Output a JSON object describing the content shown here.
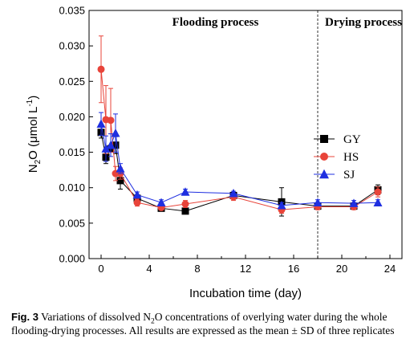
{
  "chart_data": {
    "type": "scatter",
    "xlabel": "Incubation time (day)",
    "ylabel": {
      "main": "N",
      "sub": "2",
      "rest": "O (μmol L",
      "sup": "-1",
      "end": ")"
    },
    "xlim": [
      -1,
      25
    ],
    "ylim": [
      0,
      0.035
    ],
    "xticks": [
      "0",
      "4",
      "8",
      "12",
      "16",
      "20",
      "24"
    ],
    "yticks": [
      "0.000",
      "0.005",
      "0.010",
      "0.015",
      "0.020",
      "0.025",
      "0.030",
      "0.035"
    ],
    "annotations": [
      {
        "text": "Flooding process",
        "x": 9.5
      },
      {
        "text": "Drying process",
        "x": 21.8
      }
    ],
    "divider_x": 18,
    "legend_position": "right",
    "series": [
      {
        "name": "GY",
        "marker": "square",
        "color": "#000000",
        "x": [
          0,
          0.4,
          0.8,
          1.2,
          1.6,
          3,
          5,
          7,
          11,
          15,
          18,
          21,
          23
        ],
        "y": [
          0.0178,
          0.0143,
          0.0155,
          0.016,
          0.011,
          0.0085,
          0.0071,
          0.0067,
          0.0089,
          0.008,
          0.0074,
          0.0074,
          0.0097
        ],
        "err": [
          0.0008,
          0.0009,
          0.0005,
          0.0012,
          0.0012,
          0.0004,
          0.0003,
          0.0003,
          0.0004,
          0.002,
          0.0004,
          0.0003,
          0.0007
        ]
      },
      {
        "name": "HS",
        "marker": "circle",
        "color": "#e8443a",
        "x": [
          0,
          0.4,
          0.8,
          1.2,
          1.6,
          3,
          5,
          7,
          11,
          15,
          18,
          21,
          23
        ],
        "y": [
          0.0267,
          0.0196,
          0.0195,
          0.012,
          0.012,
          0.0079,
          0.0072,
          0.0077,
          0.0087,
          0.0069,
          0.0073,
          0.0073,
          0.0094
        ],
        "err": [
          0.0047,
          0.0048,
          0.0045,
          0.001,
          0.0008,
          0.0005,
          0.0003,
          0.0005,
          0.0005,
          0.0005,
          0.0004,
          0.0004,
          0.0007
        ]
      },
      {
        "name": "SJ",
        "marker": "triangle",
        "color": "#1f2fe0",
        "x": [
          0,
          0.4,
          0.8,
          1.2,
          1.6,
          3,
          5,
          7,
          11,
          15,
          18,
          21,
          23
        ],
        "y": [
          0.019,
          0.0155,
          0.016,
          0.0177,
          0.0127,
          0.009,
          0.0079,
          0.0094,
          0.0092,
          0.0075,
          0.0079,
          0.0078,
          0.0079
        ],
        "err": [
          0.0016,
          0.0018,
          0.0016,
          0.0027,
          0.0007,
          0.0004,
          0.0004,
          0.0004,
          0.0003,
          0.0004,
          0.0004,
          0.0004,
          0.0004
        ]
      }
    ]
  },
  "caption": {
    "label": "Fig. 3",
    "text_1": "  Variations of dissolved N",
    "sub": "2",
    "text_2": "O concentrations of overlying water during the whole flooding-drying processes. All results are expressed as the mean ± SD of three replicates"
  }
}
